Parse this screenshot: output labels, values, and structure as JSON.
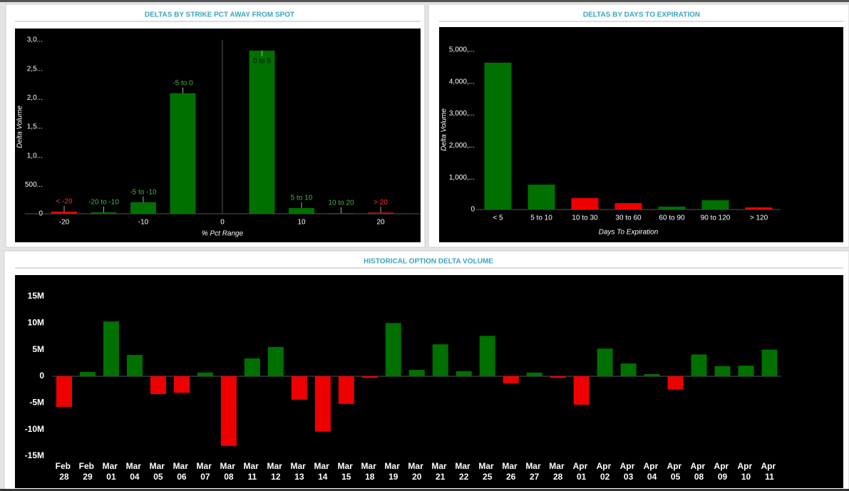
{
  "chart_data": [
    {
      "type": "bar",
      "title": "DELTAS BY STRIKE PCT AWAY FROM SPOT",
      "x_label": "% Pct Range",
      "y_label": "Delta Volume",
      "x": [
        -20,
        -15,
        -10,
        -5,
        5,
        10,
        15,
        20
      ],
      "values": [
        37,
        25,
        200,
        2080,
        2815,
        100,
        12,
        20
      ],
      "labels": [
        "< -20",
        "-20 to -10",
        "-5 to -10",
        "-5 to 0",
        "0 to 5",
        "5 to 10",
        "10 to 20",
        "> 20"
      ],
      "colors": [
        "#ee0000",
        "#007000",
        "#007000",
        "#007000",
        "#007000",
        "#007000",
        "#007000",
        "#ee0000"
      ],
      "xlim": [
        -25,
        25
      ],
      "xticks": [
        -20,
        -10,
        0,
        10,
        20
      ],
      "ylim": [
        0,
        3000
      ],
      "yticks": [
        0,
        {
          "value": 500,
          "label": "500..."
        },
        {
          "value": 1000,
          "label": "1,0..."
        },
        {
          "value": 1500,
          "label": "1,5..."
        },
        {
          "value": 2000,
          "label": "2,0..."
        },
        {
          "value": 2500,
          "label": "2,5..."
        },
        {
          "value": 3000,
          "label": "3,0..."
        }
      ]
    },
    {
      "type": "bar",
      "title": "DELTAS BY DAYS TO EXPIRATION",
      "x_label": "Days To Expiration",
      "y_label": "Delta Volume",
      "categories": [
        "< 5",
        "5 to 10",
        "10 to 30",
        "30 to 60",
        "60 to 90",
        "90 to 120",
        "> 120"
      ],
      "values": [
        4600,
        780,
        357,
        200,
        90,
        290,
        67
      ],
      "colors": [
        "#007000",
        "#007000",
        "#ee0000",
        "#ee0000",
        "#007000",
        "#007000",
        "#ee0000"
      ],
      "ylim": [
        0,
        5000
      ],
      "yticks": [
        0,
        {
          "value": 1000,
          "label": "1,000,..."
        },
        {
          "value": 2000,
          "label": "2,000,..."
        },
        {
          "value": 3000,
          "label": "3,000,..."
        },
        {
          "value": 4000,
          "label": "4,000,..."
        },
        {
          "value": 5000,
          "label": "5,000,..."
        }
      ]
    },
    {
      "type": "bar",
      "title": "HISTORICAL OPTION DELTA VOLUME",
      "categories": [
        "Feb 28",
        "Feb 29",
        "Mar 01",
        "Mar 04",
        "Mar 05",
        "Mar 06",
        "Mar 07",
        "Mar 08",
        "Mar 11",
        "Mar 12",
        "Mar 13",
        "Mar 14",
        "Mar 15",
        "Mar 18",
        "Mar 19",
        "Mar 20",
        "Mar 21",
        "Mar 22",
        "Mar 25",
        "Mar 26",
        "Mar 27",
        "Mar 28",
        "Apr 01",
        "Apr 02",
        "Apr 03",
        "Apr 04",
        "Apr 05",
        "Apr 08",
        "Apr 09",
        "Apr 10",
        "Apr 11"
      ],
      "values": [
        -5750000,
        800000,
        10300000,
        4000000,
        -3350000,
        -3100000,
        700000,
        -13100000,
        3350000,
        5500000,
        -4400000,
        -10400000,
        -5200000,
        -300000,
        10000000,
        1200000,
        6000000,
        950000,
        7600000,
        -1300000,
        700000,
        -300000,
        -5350000,
        5200000,
        2400000,
        400000,
        -2500000,
        4100000,
        1900000,
        2000000,
        5000000
      ],
      "positive_color": "#007000",
      "negative_color": "#ee0000",
      "ylim": [
        -15000000,
        15000000
      ],
      "yticks": [
        {
          "value": -15000000,
          "label": "-15M"
        },
        {
          "value": -10000000,
          "label": "-10M"
        },
        {
          "value": -5000000,
          "label": "-5M"
        },
        0,
        {
          "value": 5000000,
          "label": "5M"
        },
        {
          "value": 10000000,
          "label": "10M"
        },
        {
          "value": 15000000,
          "label": "15M"
        }
      ]
    }
  ]
}
